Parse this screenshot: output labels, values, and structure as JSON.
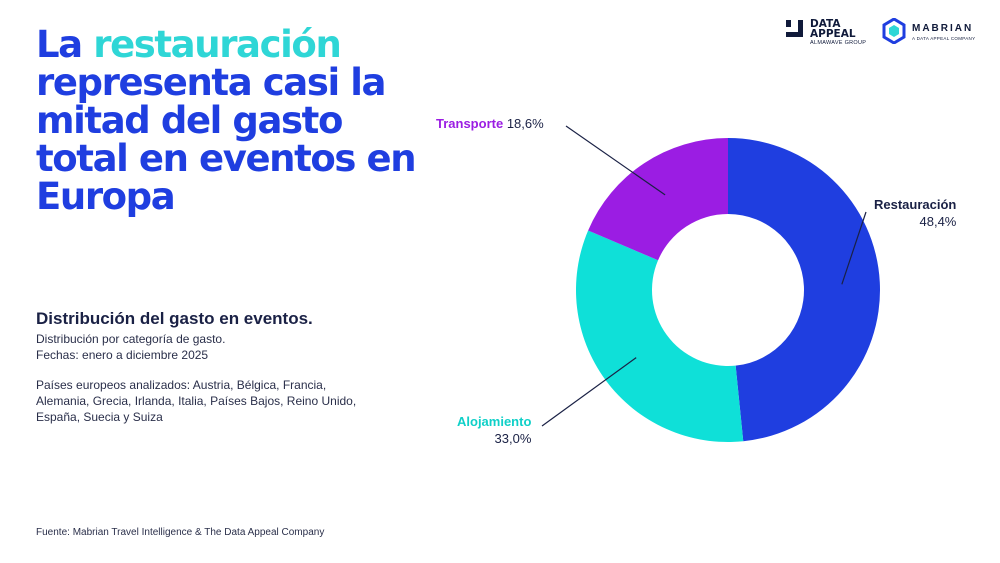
{
  "headline": {
    "before": "La ",
    "highlight": "restauración",
    "after": " representa casi la mitad del gasto total en eventos en Europa"
  },
  "logos": {
    "data_appeal": {
      "line1": "DATA",
      "line2": "APPEAL",
      "sub": "ALMAWAVE GROUP"
    },
    "mabrian": {
      "name": "MABRIAN",
      "sub": "A DATA APPEAL COMPANY"
    }
  },
  "info": {
    "title": "Distribución del gasto en eventos.",
    "line1": "Distribución por categoría de gasto.",
    "line2": "Fechas: enero a diciembre 2025",
    "line3": "Países europeos analizados: Austria, Bélgica, Francia,",
    "line4": "Alemania, Grecia, Irlanda, Italia, Países Bajos, Reino Unido,",
    "line5": "España, Suecia y Suiza"
  },
  "source": "Fuente: Mabrian Travel Intelligence & The Data Appeal Company",
  "chart_data": {
    "type": "pie",
    "donut": true,
    "slices": [
      {
        "label": "Restauración",
        "value": 48.4,
        "value_label": "48,4%",
        "color": "#1f3ee0"
      },
      {
        "label": "Alojamiento",
        "value": 33.0,
        "value_label": "33,0%",
        "color": "#0fe0d8"
      },
      {
        "label": "Transporte",
        "value": 18.6,
        "value_label": "18,6%",
        "color": "#9b1de3"
      }
    ],
    "start": "top",
    "direction": "clockwise"
  }
}
